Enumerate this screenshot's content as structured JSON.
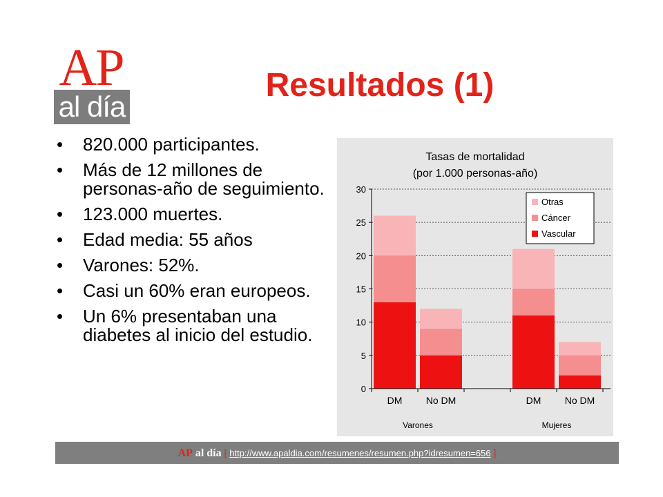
{
  "logo": {
    "top": "AP",
    "bottom": "al día"
  },
  "slide": {
    "title": "Resultados (1)"
  },
  "bullets": [
    "820.000 participantes.",
    "Más de 12 millones de personas-año de seguimiento.",
    "123.000 muertes.",
    "Edad media: 55 años",
    "Varones: 52%.",
    "Casi un 60% eran europeos.",
    "Un 6% presentaban una diabetes al inicio del estudio."
  ],
  "footer": {
    "brand_ap": "AP",
    "brand_aldia": "al día",
    "bracket_open": "[",
    "url": "http://www.apaldia.com/resumenes/resumen.php?idresumen=656",
    "bracket_close": "]"
  },
  "chart_data": {
    "type": "bar",
    "stacked": true,
    "title": "Tasas de mortalidad",
    "subtitle": "(por 1.000 personas-año)",
    "categories": [
      "DM",
      "No DM",
      "DM",
      "No DM"
    ],
    "groups": [
      "Varones",
      "Mujeres"
    ],
    "series": [
      {
        "name": "Vascular",
        "color": "#ee1111",
        "values": [
          13,
          5,
          11,
          2
        ]
      },
      {
        "name": "Cáncer",
        "color": "#f58e8e",
        "values": [
          7,
          4,
          4,
          3
        ]
      },
      {
        "name": "Otras",
        "color": "#f9b4b8",
        "values": [
          6,
          3,
          6,
          2
        ]
      }
    ],
    "ylim": [
      0,
      30
    ],
    "yticks": [
      0,
      5,
      10,
      15,
      20,
      25,
      30
    ],
    "grid": true,
    "legend": "top-right"
  }
}
